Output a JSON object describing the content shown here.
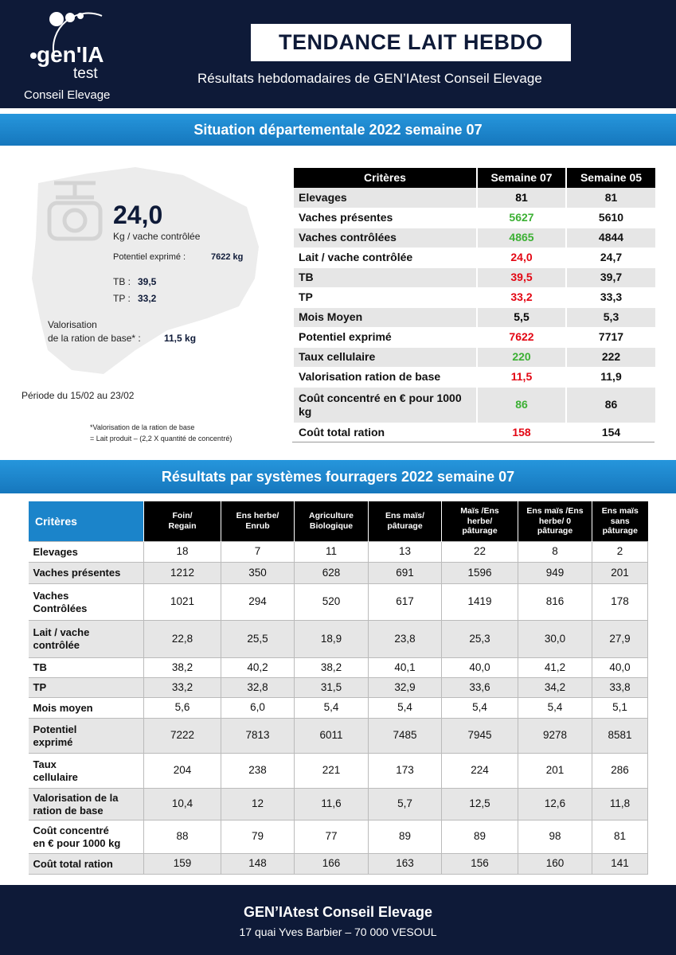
{
  "header": {
    "logo_main": "gen'IA",
    "logo_sub": "test",
    "logo_org": "Conseil Elevage",
    "title": "TENDANCE LAIT HEBDO",
    "subtitle": "Résultats hebdomadaires de GEN’IAtest Conseil Elevage"
  },
  "section1": {
    "title": "Situation départementale 2022 semaine 07",
    "summary": {
      "value": "24,0",
      "unit": "Kg / vache contrôlée",
      "potentiel_label": "Potentiel exprimé :",
      "potentiel_value": "7622 kg",
      "tb_label": "TB :",
      "tb_value": "39,5",
      "tp_label": "TP :",
      "tp_value": "33,2",
      "valorisation_label_1": "Valorisation",
      "valorisation_label_2": "de la ration de base* :",
      "valorisation_value": "11,5 kg",
      "period": "Période du 15/02 au 23/02",
      "footnote_1": "*Valorisation de la ration de base",
      "footnote_2": "= Lait produit – (2,2 X quantité de concentré)"
    },
    "table": {
      "headers": [
        "Critères",
        "Semaine 07",
        "Semaine 05"
      ],
      "rows": [
        [
          "Elevages",
          "81",
          "81"
        ],
        [
          "Vaches présentes",
          "5627",
          "5610"
        ],
        [
          "Vaches contrôlées",
          "4865",
          "4844"
        ],
        [
          "Lait / vache contrôlée",
          "24,0",
          "24,7"
        ],
        [
          "TB",
          "39,5",
          "39,7"
        ],
        [
          "TP",
          "33,2",
          "33,3"
        ],
        [
          "Mois Moyen",
          "5,5",
          "5,3"
        ],
        [
          "Potentiel exprimé",
          "7622",
          "7717"
        ],
        [
          "Taux cellulaire",
          "220",
          "222"
        ],
        [
          "Valorisation ration de base",
          "11,5",
          "11,9"
        ],
        [
          "Coût concentré en € pour 1000 kg",
          "86",
          "86"
        ],
        [
          "Coût total ration",
          "158",
          "154"
        ]
      ],
      "current_colors": [
        "#000000",
        "#3cb034",
        "#3cb034",
        "#e30613",
        "#e30613",
        "#e30613",
        "#000000",
        "#e30613",
        "#3cb034",
        "#e30613",
        "#3cb034",
        "#e30613"
      ]
    }
  },
  "section2": {
    "title": "Résultats par systèmes fourragers 2022 semaine 07",
    "table": {
      "headers": [
        "Critères",
        "Foin/\nRegain",
        "Ens herbe/\nEnrub",
        "Agriculture\nBiologique",
        "Ens maïs/\npâturage",
        "Maïs /Ens\nherbe/\npâturage",
        "Ens maïs /Ens\nherbe/ 0\npâturage",
        "Ens maïs\nsans\npâturage"
      ],
      "rows": [
        [
          "Elevages",
          "18",
          "7",
          "11",
          "13",
          "22",
          "8",
          "2"
        ],
        [
          "Vaches présentes",
          "1212",
          "350",
          "628",
          "691",
          "1596",
          "949",
          "201"
        ],
        [
          "Vaches\nContrôlées",
          "1021",
          "294",
          "520",
          "617",
          "1419",
          "816",
          "178"
        ],
        [
          "Lait / vache\ncontrôlée",
          "22,8",
          "25,5",
          "18,9",
          "23,8",
          "25,3",
          "30,0",
          "27,9"
        ],
        [
          "TB",
          "38,2",
          "40,2",
          "38,2",
          "40,1",
          "40,0",
          "41,2",
          "40,0"
        ],
        [
          "TP",
          "33,2",
          "32,8",
          "31,5",
          "32,9",
          "33,6",
          "34,2",
          "33,8"
        ],
        [
          "Mois moyen",
          "5,6",
          "6,0",
          "5,4",
          "5,4",
          "5,4",
          "5,4",
          "5,1"
        ],
        [
          "Potentiel\nexprimé",
          "7222",
          "7813",
          "6011",
          "7485",
          "7945",
          "9278",
          "8581"
        ],
        [
          "Taux\ncellulaire",
          "204",
          "238",
          "221",
          "173",
          "224",
          "201",
          "286"
        ],
        [
          "Valorisation de la\nration de base",
          "10,4",
          "12",
          "11,6",
          "5,7",
          "12,5",
          "12,6",
          "11,8"
        ],
        [
          "Coût concentré\nen € pour 1000 kg",
          "88",
          "79",
          "77",
          "89",
          "89",
          "98",
          "81"
        ],
        [
          "Coût total ration",
          "159",
          "148",
          "166",
          "163",
          "156",
          "160",
          "141"
        ]
      ]
    }
  },
  "footer": {
    "org": "GEN’IAtest Conseil Elevage",
    "address": "17 quai Yves Barbier – 70 000 VESOUL"
  }
}
